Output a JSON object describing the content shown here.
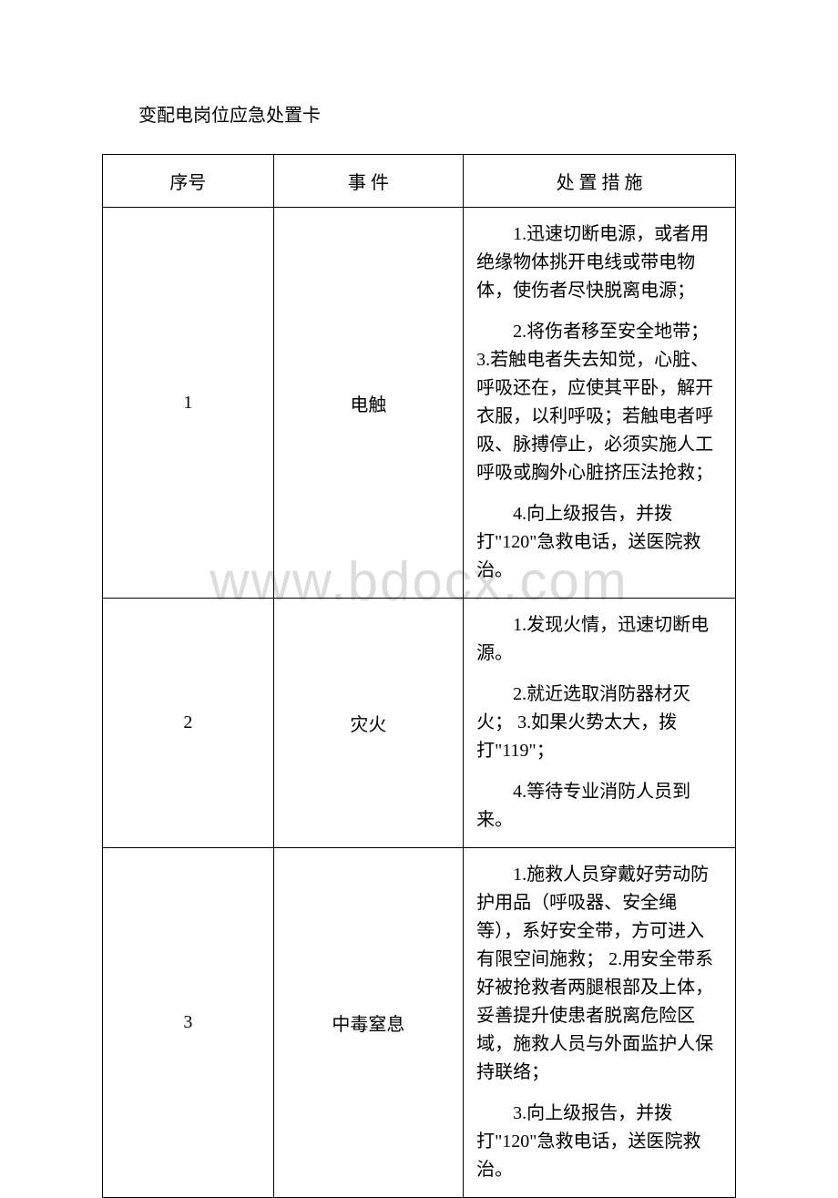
{
  "title": "变配电岗位应急处置卡",
  "watermark": "www.bdocx.com",
  "table": {
    "headers": {
      "seq": "序号",
      "event": "事 件",
      "measure": "处 置 措 施"
    },
    "rows": [
      {
        "seq": "1",
        "event": "电触",
        "measures": [
          "1.迅速切断电源，或者用绝缘物体挑开电线或带电物体，使伤者尽快脱离电源；",
          "2.将伤者移至安全地带； 3.若触电者失去知觉，心脏、呼吸还在，应使其平卧，解开衣服，以利呼吸；若触电者呼吸、脉搏停止，必须实施人工呼吸或胸外心脏挤压法抢救；",
          "4.向上级报告，并拨打\"120\"急救电话，送医院救治。"
        ]
      },
      {
        "seq": "2",
        "event": "灾火",
        "measures": [
          "1.发现火情，迅速切断电源。",
          "2.就近选取消防器材灭火； 3.如果火势太大，拨打\"119\"；",
          "4.等待专业消防人员到来。"
        ]
      },
      {
        "seq": "3",
        "event": "中毒窒息",
        "measures": [
          "1.施救人员穿戴好劳动防护用品（呼吸器、安全绳等），系好安全带，方可进入有限空间施救； 2.用安全带系好被抢救者两腿根部及上体，妥善提升使患者脱离危险区域，施救人员与外面监护人保持联络；",
          "3.向上级报告，并拨打\"120\"急救电话，送医院救治。"
        ]
      }
    ]
  }
}
